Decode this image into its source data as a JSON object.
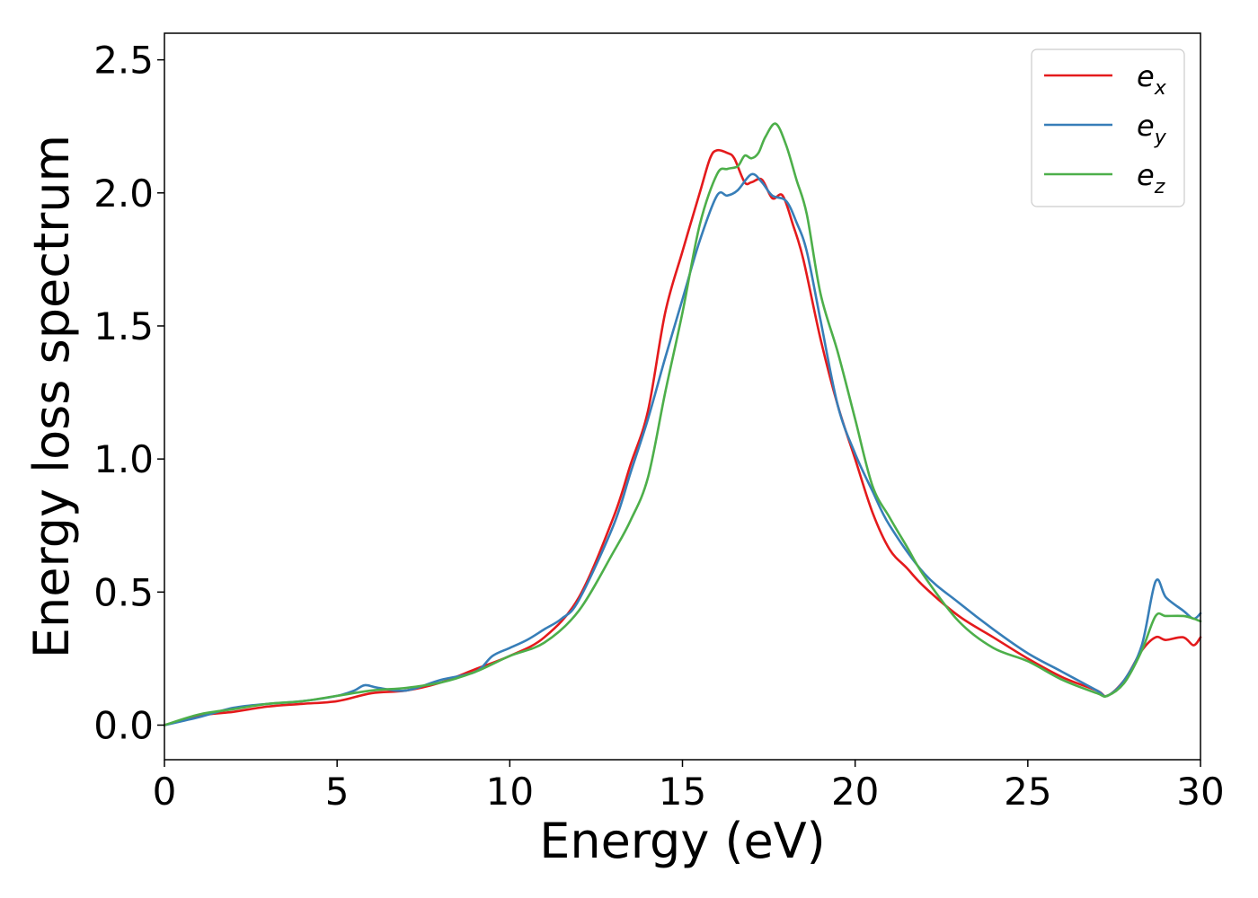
{
  "chart_data": {
    "type": "line",
    "title": "",
    "xlabel": "Energy (eV)",
    "ylabel": "Energy loss spectrum",
    "xlim": [
      0,
      30
    ],
    "ylim": [
      -0.13,
      2.6
    ],
    "xticks": [
      0,
      5,
      10,
      15,
      20,
      25,
      30
    ],
    "xtick_labels": [
      "0",
      "5",
      "10",
      "15",
      "20",
      "25",
      "30"
    ],
    "yticks": [
      0.0,
      0.5,
      1.0,
      1.5,
      2.0,
      2.5
    ],
    "ytick_labels": [
      "0.0",
      "0.5",
      "1.0",
      "1.5",
      "2.0",
      "2.5"
    ],
    "grid": false,
    "legend_position": "top-right",
    "series": [
      {
        "name": "e_x",
        "label_base": "e",
        "label_sub": "x",
        "color": "#e41a1c",
        "x": [
          0,
          1,
          2,
          3,
          4,
          5,
          6,
          7,
          8,
          9,
          10,
          11,
          12,
          13,
          13.5,
          14,
          14.5,
          15,
          15.5,
          15.8,
          16,
          16.3,
          16.5,
          16.8,
          17,
          17.3,
          17.6,
          17.9,
          18.2,
          18.5,
          19,
          19.5,
          20,
          20.5,
          21,
          21.5,
          22,
          23,
          24,
          25,
          26,
          27,
          27.3,
          27.8,
          28.3,
          28.7,
          29,
          29.5,
          29.8,
          30
        ],
        "y": [
          0.0,
          0.035,
          0.05,
          0.07,
          0.08,
          0.09,
          0.12,
          0.13,
          0.16,
          0.21,
          0.26,
          0.33,
          0.48,
          0.78,
          0.98,
          1.18,
          1.55,
          1.78,
          2.0,
          2.13,
          2.16,
          2.15,
          2.13,
          2.04,
          2.04,
          2.05,
          1.98,
          1.99,
          1.88,
          1.75,
          1.45,
          1.2,
          1.0,
          0.8,
          0.66,
          0.59,
          0.52,
          0.41,
          0.33,
          0.25,
          0.18,
          0.13,
          0.11,
          0.17,
          0.28,
          0.33,
          0.32,
          0.33,
          0.3,
          0.33
        ]
      },
      {
        "name": "e_y",
        "label_base": "e",
        "label_sub": "y",
        "color": "#377eb8",
        "x": [
          0,
          1,
          2,
          3,
          4,
          5,
          5.5,
          5.8,
          6.2,
          7,
          8,
          9,
          9.5,
          10,
          10.5,
          11,
          11.5,
          12,
          13,
          13.5,
          14,
          14.5,
          15,
          15.5,
          16,
          16.3,
          16.6,
          17,
          17.3,
          17.6,
          18,
          18.3,
          18.6,
          19,
          19.5,
          20,
          20.5,
          21,
          22,
          23,
          24,
          25,
          26,
          27,
          27.3,
          27.8,
          28.3,
          28.7,
          29,
          29.5,
          29.8,
          30
        ],
        "y": [
          0.0,
          0.03,
          0.065,
          0.08,
          0.09,
          0.11,
          0.13,
          0.15,
          0.14,
          0.13,
          0.17,
          0.2,
          0.26,
          0.29,
          0.32,
          0.36,
          0.4,
          0.47,
          0.75,
          0.95,
          1.15,
          1.38,
          1.6,
          1.82,
          1.99,
          1.99,
          2.01,
          2.07,
          2.04,
          1.99,
          1.97,
          1.89,
          1.78,
          1.52,
          1.2,
          1.02,
          0.88,
          0.75,
          0.57,
          0.46,
          0.36,
          0.27,
          0.2,
          0.13,
          0.11,
          0.17,
          0.3,
          0.54,
          0.48,
          0.43,
          0.4,
          0.42
        ]
      },
      {
        "name": "e_z",
        "label_base": "e",
        "label_sub": "z",
        "color": "#4daf4a",
        "x": [
          0,
          1,
          2,
          3,
          4,
          5,
          6,
          7,
          8,
          9,
          10,
          11,
          12,
          13,
          13.5,
          14,
          14.5,
          15,
          15.5,
          16,
          16.3,
          16.6,
          16.8,
          17,
          17.2,
          17.4,
          17.7,
          18,
          18.3,
          18.6,
          19,
          19.5,
          20,
          20.5,
          21,
          21.5,
          22,
          23,
          24,
          25,
          26,
          27,
          27.3,
          27.8,
          28.3,
          28.7,
          29,
          29.5,
          29.8,
          30
        ],
        "y": [
          0.0,
          0.04,
          0.06,
          0.08,
          0.09,
          0.11,
          0.13,
          0.14,
          0.16,
          0.2,
          0.26,
          0.31,
          0.43,
          0.65,
          0.77,
          0.93,
          1.25,
          1.55,
          1.88,
          2.07,
          2.09,
          2.1,
          2.14,
          2.13,
          2.15,
          2.21,
          2.26,
          2.18,
          2.05,
          1.92,
          1.62,
          1.4,
          1.15,
          0.9,
          0.78,
          0.67,
          0.56,
          0.39,
          0.29,
          0.24,
          0.17,
          0.12,
          0.11,
          0.16,
          0.28,
          0.41,
          0.41,
          0.41,
          0.4,
          0.39
        ]
      }
    ]
  }
}
